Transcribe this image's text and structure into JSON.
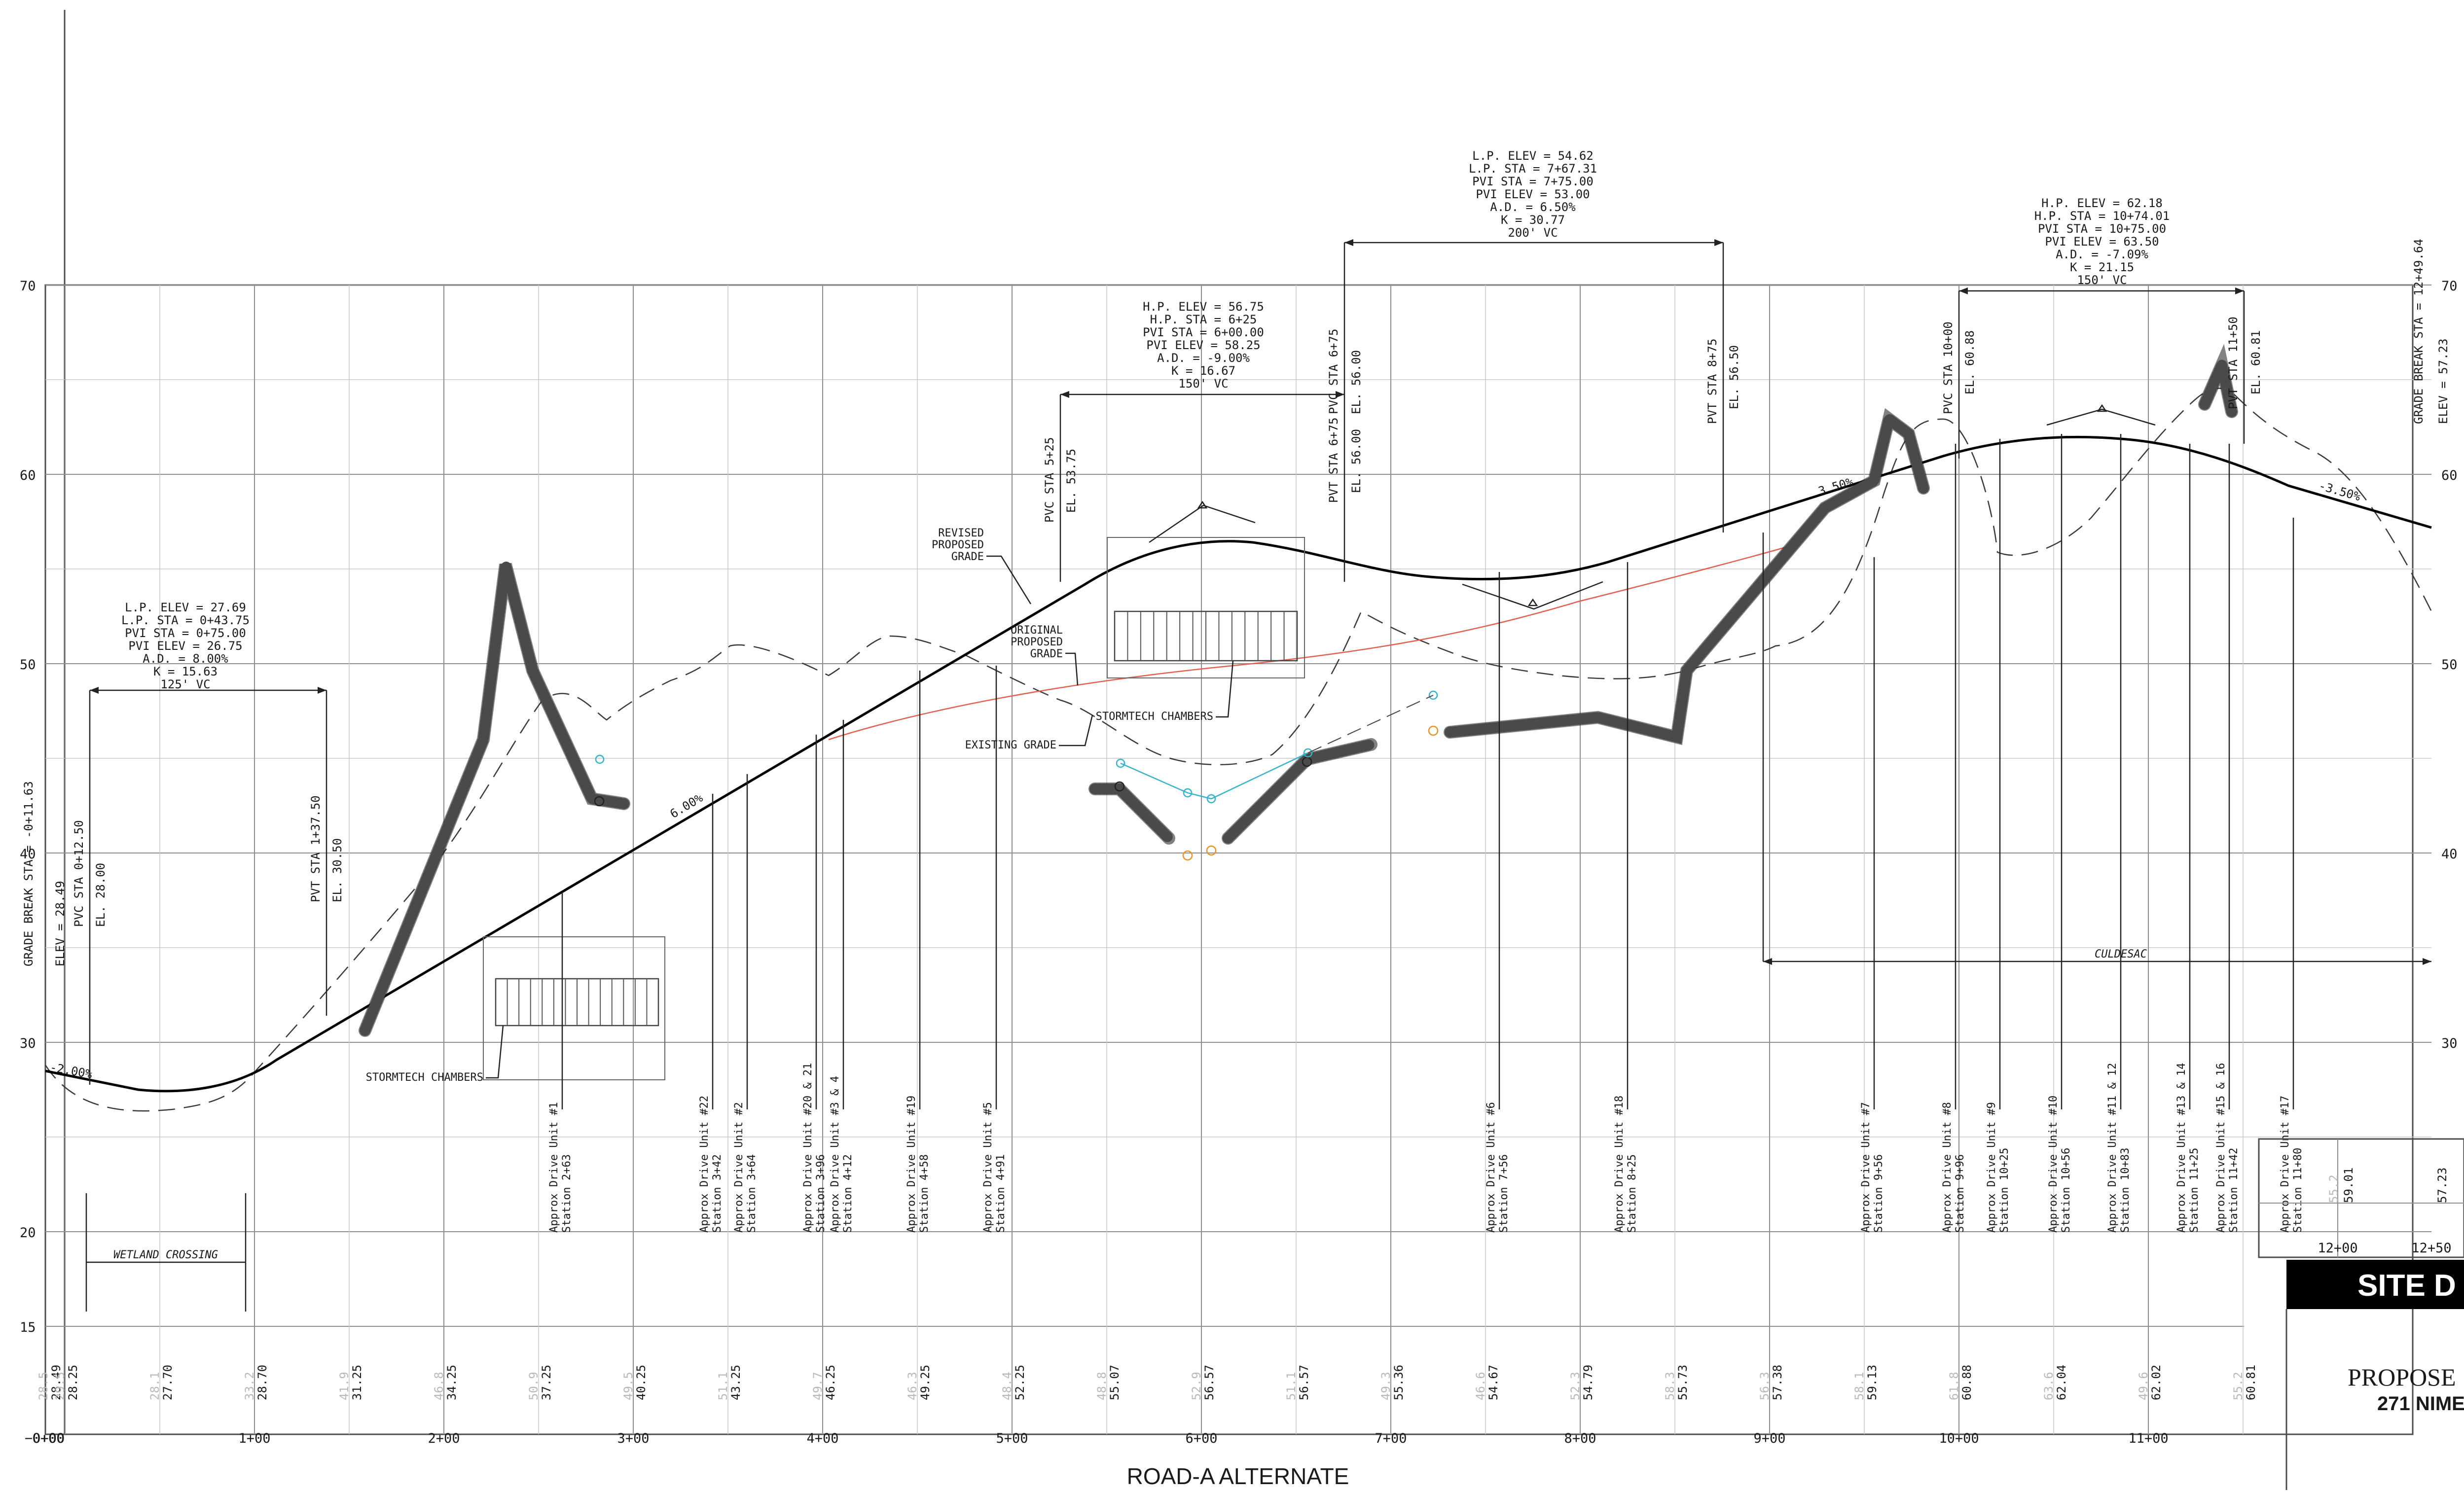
{
  "title": "ROAD-A  ALTERNATE",
  "title_block": {
    "heading": "SITE D",
    "line1": "PROPOSE",
    "line2": "271 NIME"
  },
  "y_ticks": [
    "70",
    "60",
    "50",
    "40",
    "30",
    "20",
    "15"
  ],
  "y_ticks_right": [
    "70",
    "60",
    "50",
    "40",
    "30"
  ],
  "x_ticks": [
    "0+00",
    "1+00",
    "2+00",
    "3+00",
    "4+00",
    "5+00",
    "6+00",
    "7+00",
    "8+00",
    "9+00",
    "10+00",
    "11+00"
  ],
  "x_start_label": "−0+00",
  "inset_x_ticks": [
    "12+00",
    "12+50"
  ],
  "curves": [
    {
      "lines": [
        "L.P. ELEV = 27.69",
        "L.P. STA = 0+43.75",
        "PVI STA = 0+75.00",
        "PVI ELEV = 26.75",
        "A.D. = 8.00%",
        "K = 15.63",
        "125' VC"
      ]
    },
    {
      "lines": [
        "H.P. ELEV = 56.75",
        "H.P. STA = 6+25",
        "PVI STA = 6+00.00",
        "PVI ELEV = 58.25",
        "A.D. = -9.00%",
        "K = 16.67",
        "150' VC"
      ]
    },
    {
      "lines": [
        "L.P. ELEV = 54.62",
        "L.P. STA = 7+67.31",
        "PVI STA = 7+75.00",
        "PVI ELEV = 53.00",
        "A.D. = 6.50%",
        "K = 30.77",
        "200' VC"
      ]
    },
    {
      "lines": [
        "H.P. ELEV = 62.18",
        "H.P. STA = 10+74.01",
        "PVI STA = 10+75.00",
        "PVI ELEV = 63.50",
        "A.D. = -7.09%",
        "K = 21.15",
        "150' VC"
      ]
    }
  ],
  "vert_labels": {
    "gb_left_a": "GRADE BREAK STA = -0+11.63",
    "gb_left_b": "ELEV = 28.49",
    "pvc1_a": "PVC STA 0+12.50",
    "pvc1_b": "EL. 28.00",
    "pvt1_a": "PVT STA 1+37.50",
    "pvt1_b": "EL. 30.50",
    "pvc2_a": "PVC STA 5+25",
    "pvc2_b": "EL. 53.75",
    "pvt2_a": "PVT STA 6+75",
    "pvt2_b": "EL. 56.00",
    "pvc3_a": "PVC STA 6+75",
    "pvc3_b": "EL. 56.00",
    "pvt3_a": "PVT STA 8+75",
    "pvt3_b": "EL. 56.50",
    "pvc4_a": "PVC STA 10+00",
    "pvc4_b": "EL. 60.88",
    "pvt4_a": "PVT STA 11+50",
    "pvt4_b": "EL. 60.81",
    "gb_right_a": "GRADE BREAK STA = 12+49.64",
    "gb_right_b": "ELEV = 57.23"
  },
  "grades": [
    "-2.00%",
    "6.00%",
    "3.50%",
    "-3.50%"
  ],
  "callouts": {
    "revised": [
      "REVISED",
      "PROPOSED",
      "GRADE"
    ],
    "original": [
      "ORIGINAL",
      "PROPOSED",
      "GRADE"
    ],
    "stormtech_a": "STORMTECH CHAMBERS",
    "stormtech_b": "STORMTECH CHAMBERS",
    "existing": "EXISTING GRADE",
    "wetland": "WETLAND CROSSING",
    "culdesac": "CULDESAC"
  },
  "drives": [
    {
      "a": "Approx Drive Unit #1",
      "b": "Station 2+63"
    },
    {
      "a": "Approx Drive Unit #22",
      "b": "Station 3+42"
    },
    {
      "a": "Approx Drive Unit #2",
      "b": "Station 3+64"
    },
    {
      "a": "Approx Drive Unit #20 & 21",
      "b": "Station 3+96"
    },
    {
      "a": "Approx Drive Unit #3 & 4",
      "b": "Station 4+12"
    },
    {
      "a": "Approx Drive Unit #19",
      "b": "Station 4+58"
    },
    {
      "a": "Approx Drive Unit #5",
      "b": "Station 4+91"
    },
    {
      "a": "Approx Drive Unit #6",
      "b": "Station 7+56"
    },
    {
      "a": "Approx Drive Unit #18",
      "b": "Station 8+25"
    },
    {
      "a": "Approx Drive Unit #7",
      "b": "Station 9+56"
    },
    {
      "a": "Approx Drive Unit #8",
      "b": "Station 9+96"
    },
    {
      "a": "Approx Drive Unit #9",
      "b": "Station 10+25"
    },
    {
      "a": "Approx Drive Unit #10",
      "b": "Station 10+56"
    },
    {
      "a": "Approx Drive Unit #11 & 12",
      "b": "Station 10+83"
    },
    {
      "a": "Approx Drive Unit #13 & 14",
      "b": "Station 11+25"
    },
    {
      "a": "Approx Drive Unit #15 & 16",
      "b": "Station 11+42"
    },
    {
      "a": "Approx Drive Unit #17",
      "b": "Station 11+80"
    }
  ],
  "elev_faint": [
    "28.5",
    "29.5",
    "28.1",
    "33.2",
    "41.9",
    "46.8",
    "50.9",
    "49.5",
    "51.1",
    "49.7",
    "46.3",
    "48.4",
    "48.8",
    "52.9",
    "51.1",
    "49.3",
    "46.6",
    "52.3",
    "58.3",
    "56.3",
    "58.1",
    "61.8",
    "63.6",
    "49.6",
    "55.2"
  ],
  "elev_bold": [
    "28.49",
    "28.25",
    "27.70",
    "28.70",
    "31.25",
    "34.25",
    "37.25",
    "40.25",
    "43.25",
    "46.25",
    "49.25",
    "52.25",
    "55.07",
    "56.57",
    "56.57",
    "55.36",
    "54.67",
    "54.79",
    "55.73",
    "57.38",
    "59.13",
    "60.88",
    "62.04",
    "62.02",
    "60.81"
  ],
  "inset_elev": [
    "59.01",
    "57.23"
  ]
}
